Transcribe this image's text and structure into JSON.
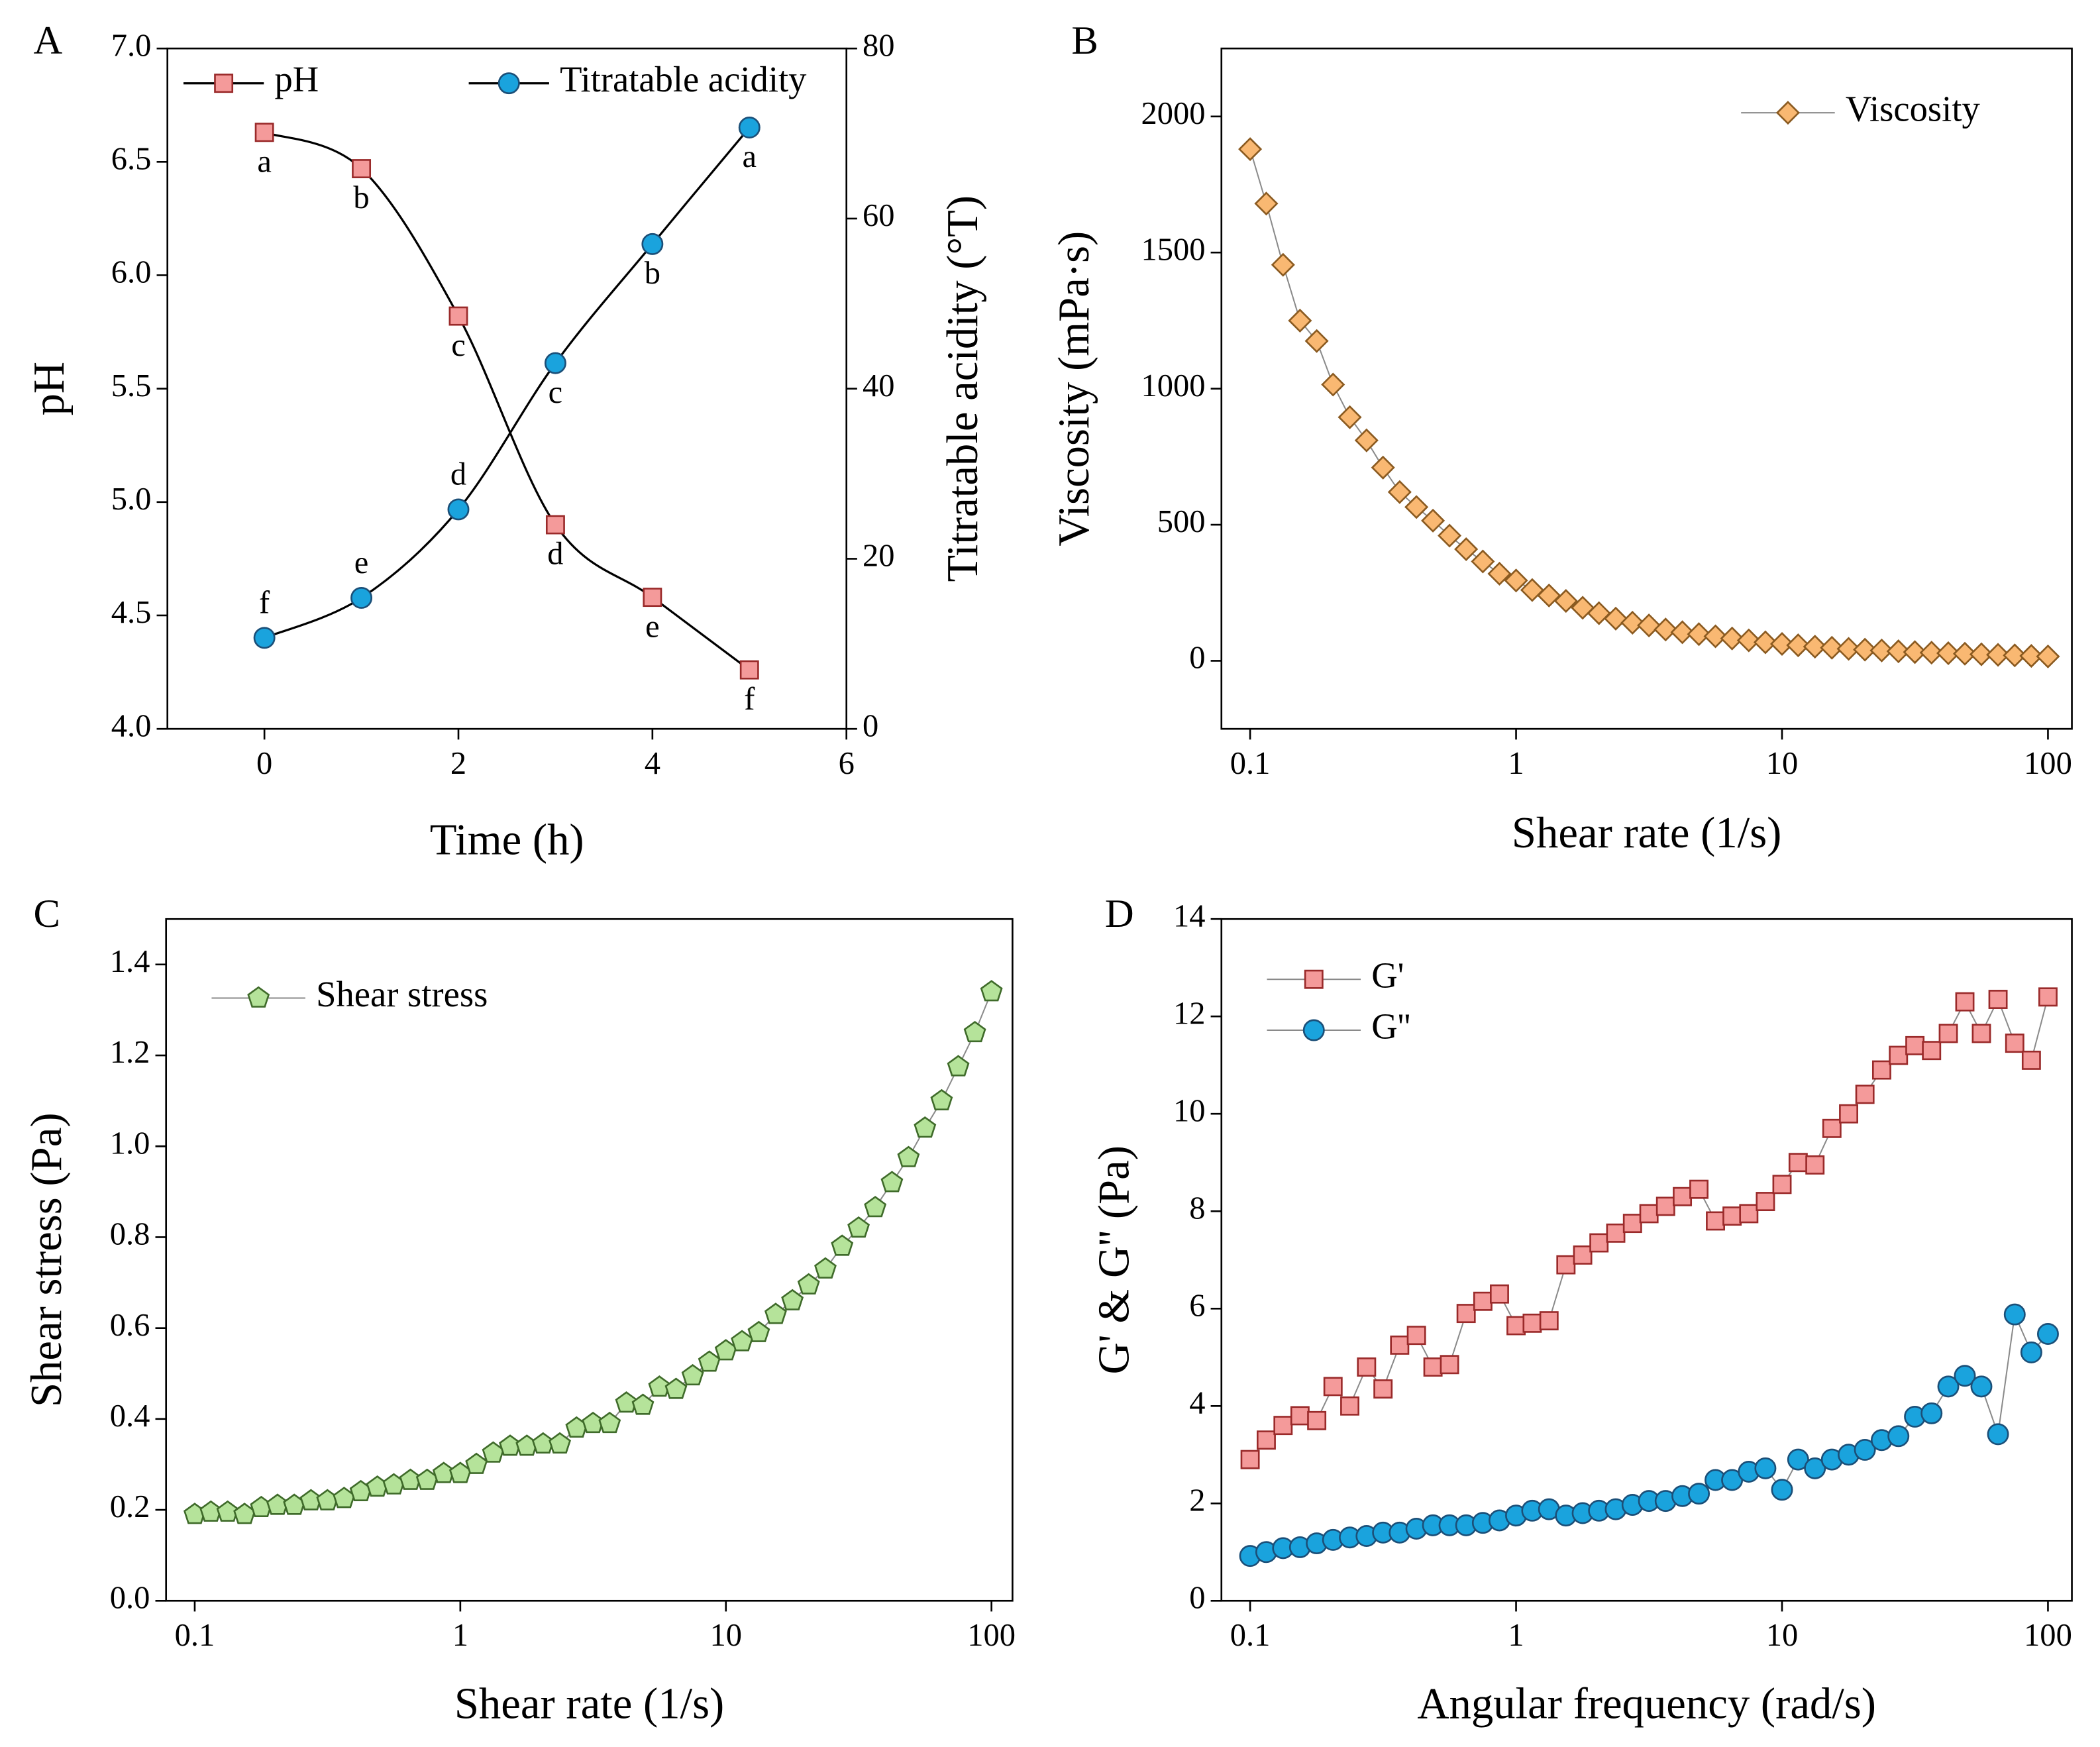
{
  "chart_data": [
    {
      "panel": "A",
      "type": "line",
      "smooth": true,
      "xlabel": "Time (h)",
      "ylabel": "pH",
      "y2label": "Titratable acidity (°T)",
      "x": [
        0,
        1,
        2,
        3,
        4,
        5
      ],
      "xlim": [
        -1,
        6
      ],
      "xticks": [
        0,
        2,
        4,
        6
      ],
      "ylim": [
        4,
        7
      ],
      "yticks": [
        {
          "value": 4,
          "label": "4.0"
        },
        4.5,
        {
          "value": 5,
          "label": "5.0"
        },
        5.5,
        {
          "value": 6,
          "label": "6.0"
        },
        6.5,
        {
          "value": 7,
          "label": "7.0"
        }
      ],
      "y2lim": [
        0,
        80
      ],
      "y2ticks": [
        0,
        20,
        40,
        60,
        80
      ],
      "legend": "upper center",
      "series": [
        {
          "name": "pH",
          "color": "#f49a9a",
          "edge": "#9a2a2a",
          "marker": "square",
          "values": [
            6.63,
            6.47,
            5.82,
            4.9,
            4.58,
            4.26
          ],
          "point_labels": [
            "a",
            "b",
            "c",
            "d",
            "e",
            "f"
          ]
        },
        {
          "name": "Titratable acidity",
          "color": "#1aa3dd",
          "edge": "#1b4f78",
          "marker": "circle",
          "axis": "y2",
          "values": [
            10.7,
            15.4,
            25.8,
            43.0,
            57.0,
            70.7
          ],
          "point_labels": [
            "f",
            "e",
            "d",
            "c",
            "b",
            "a"
          ]
        }
      ]
    },
    {
      "panel": "B",
      "type": "line",
      "xscale": "log",
      "xlabel": "Shear rate (1/s)",
      "ylabel": "Viscosity (mPa·s)",
      "x": [
        0.1,
        0.115,
        0.133,
        0.154,
        0.178,
        0.205,
        0.237,
        0.274,
        0.316,
        0.365,
        0.422,
        0.487,
        0.562,
        0.649,
        0.75,
        0.866,
        1,
        1.15,
        1.33,
        1.54,
        1.78,
        2.05,
        2.37,
        2.74,
        3.16,
        3.65,
        4.22,
        4.87,
        5.62,
        6.49,
        7.5,
        8.66,
        10,
        11.5,
        13.3,
        15.4,
        17.8,
        20.5,
        23.7,
        27.4,
        31.6,
        36.5,
        42.2,
        48.7,
        56.2,
        64.9,
        75,
        86.6,
        100
      ],
      "xlim": [
        0.078,
        123
      ],
      "xticks": [
        0.1,
        1,
        10,
        100
      ],
      "ylim": [
        -250,
        2250
      ],
      "yticks": [
        0,
        500,
        1000,
        1500,
        2000
      ],
      "legend": "upper right",
      "series": [
        {
          "name": "Viscosity",
          "color": "#f9b872",
          "edge": "#8a5a20",
          "marker": "diamond",
          "values": [
            1880,
            1680,
            1455,
            1250,
            1175,
            1015,
            895,
            810,
            710,
            620,
            565,
            515,
            460,
            410,
            365,
            320,
            295,
            260,
            240,
            220,
            195,
            175,
            155,
            140,
            130,
            115,
            105,
            98,
            90,
            82,
            75,
            68,
            62,
            57,
            52,
            48,
            44,
            41,
            38,
            35,
            32,
            30,
            28,
            26,
            24,
            22,
            20,
            18,
            16
          ]
        }
      ]
    },
    {
      "panel": "C",
      "type": "line",
      "xscale": "log",
      "xlabel": "Shear rate (1/s)",
      "ylabel": "Shear stress (Pa)",
      "x": [
        0.1,
        0.115,
        0.133,
        0.154,
        0.178,
        0.205,
        0.237,
        0.274,
        0.316,
        0.365,
        0.422,
        0.487,
        0.562,
        0.649,
        0.75,
        0.866,
        1,
        1.15,
        1.33,
        1.54,
        1.78,
        2.05,
        2.37,
        2.74,
        3.16,
        3.65,
        4.22,
        4.87,
        5.62,
        6.49,
        7.5,
        8.66,
        10,
        11.5,
        13.3,
        15.4,
        17.8,
        20.5,
        23.7,
        27.4,
        31.6,
        36.5,
        42.2,
        48.7,
        56.2,
        64.9,
        75,
        86.6,
        100
      ],
      "xlim": [
        0.078,
        120
      ],
      "xticks": [
        0.1,
        1,
        10,
        100
      ],
      "ylim": [
        0,
        1.5
      ],
      "yticks": [
        {
          "value": 0,
          "label": "0.0"
        },
        0.2,
        0.4,
        0.6,
        0.8,
        {
          "value": 1,
          "label": "1.0"
        },
        1.2,
        1.4
      ],
      "legend": "upper left",
      "series": [
        {
          "name": "Shear stress",
          "color": "#b5e39a",
          "edge": "#3f6b2a",
          "marker": "pentagon",
          "values": [
            0.19,
            0.195,
            0.195,
            0.19,
            0.205,
            0.21,
            0.21,
            0.22,
            0.22,
            0.225,
            0.24,
            0.25,
            0.255,
            0.265,
            0.265,
            0.28,
            0.28,
            0.3,
            0.325,
            0.34,
            0.34,
            0.345,
            0.345,
            0.38,
            0.39,
            0.39,
            0.435,
            0.43,
            0.47,
            0.465,
            0.495,
            0.525,
            0.55,
            0.57,
            0.59,
            0.63,
            0.66,
            0.695,
            0.73,
            0.78,
            0.82,
            0.865,
            0.92,
            0.975,
            1.04,
            1.1,
            1.175,
            1.25,
            1.34
          ]
        }
      ]
    },
    {
      "panel": "D",
      "type": "line",
      "xscale": "log",
      "xlabel": "Angular frequency (rad/s)",
      "ylabel": "G' & G'' (Pa)",
      "x": [
        0.1,
        0.115,
        0.133,
        0.154,
        0.178,
        0.205,
        0.237,
        0.274,
        0.316,
        0.365,
        0.422,
        0.487,
        0.562,
        0.649,
        0.75,
        0.866,
        1,
        1.15,
        1.33,
        1.54,
        1.78,
        2.05,
        2.37,
        2.74,
        3.16,
        3.65,
        4.22,
        4.87,
        5.62,
        6.49,
        7.5,
        8.66,
        10,
        11.5,
        13.3,
        15.4,
        17.8,
        20.5,
        23.7,
        27.4,
        31.6,
        36.5,
        42.2,
        48.7,
        56.2,
        64.9,
        75,
        86.6,
        100
      ],
      "xlim": [
        0.078,
        123
      ],
      "xticks": [
        0.1,
        1,
        10,
        100
      ],
      "ylim": [
        0,
        14
      ],
      "yticks": [
        0,
        2,
        4,
        6,
        8,
        10,
        12,
        14
      ],
      "legend": "upper left",
      "series": [
        {
          "name": "G'",
          "color": "#f49a9a",
          "edge": "#9a2a2a",
          "marker": "square",
          "values": [
            2.9,
            3.3,
            3.6,
            3.8,
            3.7,
            4.4,
            4.0,
            4.8,
            4.35,
            5.25,
            5.45,
            4.8,
            4.85,
            5.9,
            6.15,
            6.3,
            5.65,
            5.7,
            5.75,
            6.9,
            7.1,
            7.35,
            7.55,
            7.75,
            7.95,
            8.1,
            8.3,
            8.45,
            7.8,
            7.9,
            7.95,
            8.2,
            8.55,
            9.0,
            8.95,
            9.7,
            10.0,
            10.4,
            10.9,
            11.2,
            11.4,
            11.3,
            11.65,
            12.3,
            11.65,
            12.35,
            11.45,
            11.1,
            12.4
          ]
        },
        {
          "name": "G''",
          "color": "#1aa3dd",
          "edge": "#1b4f78",
          "marker": "circle",
          "values": [
            0.92,
            1.0,
            1.08,
            1.1,
            1.18,
            1.25,
            1.3,
            1.33,
            1.4,
            1.4,
            1.48,
            1.55,
            1.55,
            1.55,
            1.6,
            1.65,
            1.75,
            1.85,
            1.88,
            1.75,
            1.8,
            1.85,
            1.88,
            1.97,
            2.05,
            2.05,
            2.15,
            2.2,
            2.48,
            2.48,
            2.65,
            2.72,
            2.28,
            2.9,
            2.72,
            2.9,
            3.0,
            3.1,
            3.3,
            3.38,
            3.78,
            3.85,
            4.4,
            4.62,
            4.4,
            3.42,
            5.88,
            5.1,
            5.48
          ]
        }
      ]
    }
  ]
}
